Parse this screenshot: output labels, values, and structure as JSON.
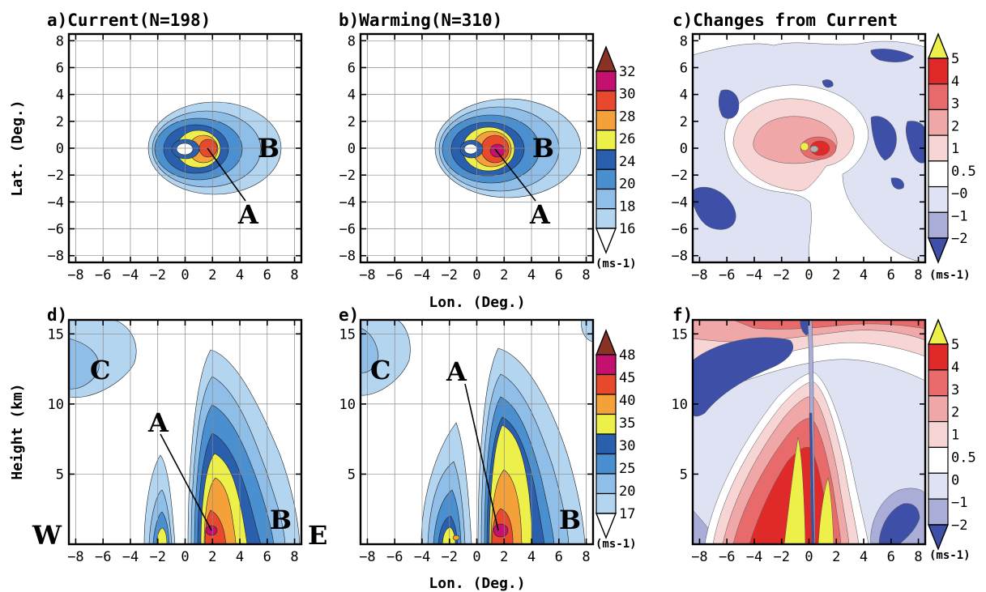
{
  "colors": {
    "speed": [
      "#ffffff",
      "#b3d5f0",
      "#8fbee8",
      "#4a8fcf",
      "#2a5fae",
      "#eef04a",
      "#f4a13a",
      "#e8492c",
      "#c4106e",
      "#8a3324"
    ],
    "diff": [
      "#3d4fa6",
      "#a9add8",
      "#dfe2f3",
      "#ffffff",
      "#f7d5d5",
      "#f0a7a7",
      "#e86a6a",
      "#e02a2a",
      "#eef04a"
    ]
  },
  "units": "(ms-1)",
  "xlabel": "Lon. (Deg.)",
  "panels": [
    {
      "label": "a)Current(N=198)",
      "ylabel": "Lat. (Deg.)",
      "annotations": [
        "A",
        "B"
      ]
    },
    {
      "label": "b)Warming(N=310)",
      "annotations": [
        "A",
        "B"
      ]
    },
    {
      "label": "c)Changes from Current"
    },
    {
      "label": "d)",
      "ylabel": "Height (km)",
      "annotations": [
        "A",
        "B",
        "C"
      ],
      "side_labels": [
        "W",
        "E"
      ]
    },
    {
      "label": "e)",
      "annotations": [
        "A",
        "B",
        "C"
      ]
    },
    {
      "label": "f)"
    }
  ],
  "chart_data": [
    {
      "type": "heatmap",
      "panel": "a",
      "title": "a)Current(N=198)",
      "ylabel": "Lat. (Deg.)",
      "xlim": [
        -8.5,
        8.5
      ],
      "ylim": [
        -8.5,
        8.5
      ],
      "xticks": [
        -8,
        -6,
        -4,
        -2,
        0,
        2,
        4,
        6,
        8
      ],
      "yticks": [
        -8,
        -6,
        -4,
        -2,
        0,
        2,
        4,
        6,
        8
      ],
      "levels": [
        16,
        18,
        20,
        24,
        26,
        28,
        30,
        32
      ],
      "grid": true,
      "max_wind_location": {
        "x": 1.5,
        "y": 0
      }
    },
    {
      "type": "heatmap",
      "panel": "b",
      "title": "b)Warming(N=310)",
      "xlabel": "Lon. (Deg.)",
      "xlim": [
        -8.5,
        8.5
      ],
      "ylim": [
        -8.5,
        8.5
      ],
      "xticks": [
        -8,
        -6,
        -4,
        -2,
        0,
        2,
        4,
        6,
        8
      ],
      "yticks": [
        -8,
        -6,
        -4,
        -2,
        0,
        2,
        4,
        6,
        8
      ],
      "levels": [
        16,
        18,
        20,
        24,
        26,
        28,
        30,
        32
      ],
      "grid": true,
      "max_wind_location": {
        "x": 1.2,
        "y": -0.3
      }
    },
    {
      "type": "heatmap",
      "panel": "c",
      "title": "c)Changes from Current",
      "xlim": [
        -8.5,
        8.5
      ],
      "ylim": [
        -8.5,
        8.5
      ],
      "xticks": [
        -8,
        -6,
        -4,
        -2,
        0,
        2,
        4,
        6,
        8
      ],
      "yticks": [
        -8,
        -6,
        -4,
        -2,
        0,
        2,
        4,
        6,
        8
      ],
      "levels": [
        "-2",
        "-1",
        "-0",
        "0.5",
        "1",
        "2",
        "3",
        "4",
        "5"
      ],
      "grid": false
    },
    {
      "type": "heatmap",
      "panel": "d",
      "title": "d)",
      "ylabel": "Height (km)",
      "xlim": [
        -8.5,
        8.5
      ],
      "ylim": [
        0,
        16
      ],
      "xticks": [
        -8,
        -6,
        -4,
        -2,
        0,
        2,
        4,
        6,
        8
      ],
      "yticks": [
        5,
        10,
        15
      ],
      "levels": [
        17,
        20,
        25,
        30,
        35,
        40,
        45,
        48
      ],
      "grid": true
    },
    {
      "type": "heatmap",
      "panel": "e",
      "title": "e)",
      "xlabel": "Lon. (Deg.)",
      "xlim": [
        -8.5,
        8.5
      ],
      "ylim": [
        0,
        16
      ],
      "xticks": [
        -8,
        -6,
        -4,
        -2,
        0,
        2,
        4,
        6,
        8
      ],
      "yticks": [
        5,
        10,
        15
      ],
      "levels": [
        17,
        20,
        25,
        30,
        35,
        40,
        45,
        48
      ],
      "grid": true
    },
    {
      "type": "heatmap",
      "panel": "f",
      "title": "f)",
      "xlim": [
        -8.5,
        8.5
      ],
      "ylim": [
        0,
        16
      ],
      "xticks": [
        -8,
        -6,
        -4,
        -2,
        0,
        2,
        4,
        6,
        8
      ],
      "yticks": [
        5,
        10,
        15
      ],
      "levels": [
        "-2",
        "-1",
        "0",
        "0.5",
        "1",
        "2",
        "3",
        "4",
        "5"
      ],
      "grid": false
    }
  ]
}
